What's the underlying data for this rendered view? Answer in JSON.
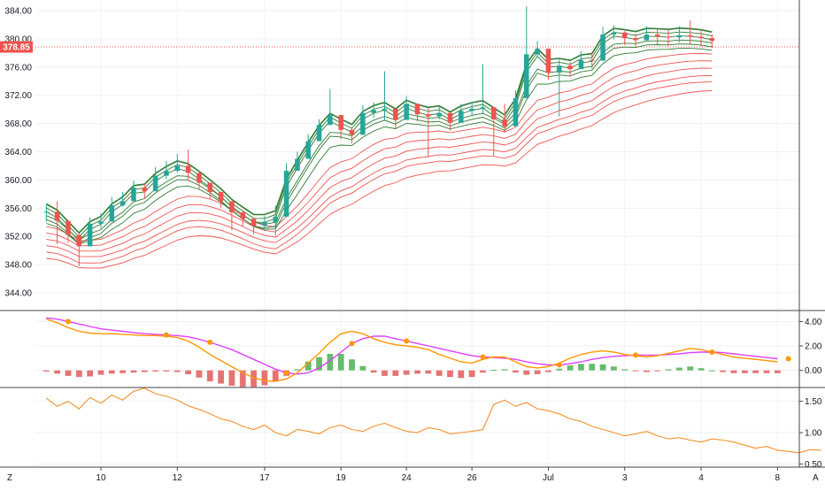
{
  "price_axis": {
    "ticks": [
      "384.00",
      "380.00",
      "376.00",
      "372.00",
      "368.00",
      "364.00",
      "360.00",
      "356.00",
      "352.00",
      "348.00",
      "344.00"
    ],
    "tick_values": [
      384,
      380,
      376,
      372,
      368,
      364,
      360,
      356,
      352,
      348,
      344
    ],
    "current_price_label": "378.85",
    "current_price": 378.85
  },
  "macd_axis": {
    "ticks": [
      "4.00",
      "2.00",
      "0.00"
    ],
    "tick_values": [
      4,
      2,
      0
    ]
  },
  "lower_axis": {
    "ticks": [
      "1.50",
      "1.00",
      "0.50"
    ],
    "tick_values": [
      1.5,
      1.0,
      0.5
    ]
  },
  "time_axis": {
    "ticks": [
      "10",
      "12",
      "17",
      "19",
      "24",
      "26",
      "Jul",
      "3",
      "4",
      "8"
    ],
    "tick_index": [
      6,
      13,
      21,
      28,
      34,
      40,
      47,
      54,
      61,
      68
    ]
  },
  "footer": {
    "left_button": "Z",
    "right_button": "A"
  },
  "colors": {
    "bull": "#26a69a",
    "bull_dark": "#089981",
    "bear": "#ef5350",
    "ribbon_fast": "#2e7d32",
    "ribbon_slow": "#ef5350",
    "macd_line": "#ff9800",
    "signal_line": "#e040fb",
    "lower_line": "#f5902a",
    "current_price_bg": "#ef5350"
  },
  "chart_data": [
    {
      "type": "candlestick",
      "panel": "price",
      "ylim": [
        341.5,
        385.5
      ],
      "x_range": [
        0,
        70
      ],
      "close_start": 355.5,
      "closes": [
        355.5,
        354.2,
        352.2,
        350.6,
        353.8,
        354.1,
        356.4,
        357.0,
        358.9,
        358.4,
        360.6,
        361.3,
        362.0,
        361.0,
        359.6,
        358.3,
        357.0,
        355.4,
        354.5,
        353.5,
        354.0,
        354.8,
        361.3,
        363.0,
        365.5,
        367.8,
        369.2,
        367.1,
        366.4,
        369.5,
        369.9,
        370.1,
        368.5,
        370.8,
        369.3,
        369.0,
        369.5,
        368.1,
        369.8,
        370.1,
        370.3,
        368.6,
        367.6,
        371.6,
        377.8,
        378.6,
        375.2,
        376.2,
        375.7,
        377.0,
        376.9,
        380.6,
        380.9,
        380.1,
        379.8,
        380.6,
        380.3,
        380.2,
        380.5,
        380.3,
        380.1,
        379.7
      ],
      "highs": [
        356.6,
        357.0,
        353.6,
        352.5,
        354.7,
        355.3,
        357.6,
        358.3,
        359.9,
        359.5,
        361.8,
        362.7,
        363.7,
        364.3,
        360.5,
        359.6,
        358.0,
        356.3,
        355.5,
        354.6,
        354.9,
        356.4,
        362.4,
        364.0,
        366.5,
        368.6,
        372.9,
        368.3,
        367.5,
        370.6,
        371.0,
        375.4,
        369.7,
        371.9,
        370.3,
        370.2,
        370.5,
        369.1,
        370.8,
        371.0,
        376.4,
        369.5,
        370.8,
        372.7,
        384.6,
        379.7,
        376.6,
        377.3,
        376.7,
        378.2,
        378.1,
        381.7,
        381.9,
        381.1,
        380.7,
        381.8,
        381.4,
        381.3,
        381.8,
        382.6,
        381.1,
        380.6
      ],
      "lows": [
        354.1,
        350.9,
        351.1,
        347.8,
        352.8,
        353.2,
        355.4,
        356.2,
        357.8,
        357.3,
        359.2,
        360.1,
        361.0,
        359.9,
        358.7,
        357.3,
        356.0,
        352.9,
        353.4,
        352.3,
        353.1,
        352.1,
        360.2,
        361.8,
        364.5,
        366.5,
        368.0,
        365.8,
        365.2,
        368.3,
        368.8,
        368.5,
        367.3,
        369.8,
        368.3,
        363.2,
        368.6,
        367.0,
        368.6,
        369.1,
        369.3,
        363.4,
        366.7,
        370.5,
        374.0,
        377.6,
        374.2,
        369.0,
        374.7,
        375.9,
        375.8,
        379.6,
        379.9,
        379.1,
        378.8,
        379.6,
        379.2,
        379.0,
        379.5,
        379.2,
        378.9,
        378.7
      ],
      "ribbon_fast": {
        "count": 6,
        "spread": 0.55,
        "lengths": [
          3,
          5,
          8,
          10,
          12,
          15
        ]
      },
      "ribbon_slow": {
        "count": 6,
        "spread": 0.9,
        "lengths": [
          30,
          35,
          40,
          45,
          50,
          60
        ]
      }
    },
    {
      "type": "line+histogram",
      "panel": "macd",
      "ylim": [
        -1.4,
        4.9
      ],
      "series": [
        {
          "role": "macd",
          "values": [
            4.2,
            3.9,
            3.5,
            3.2,
            3.05,
            3.0,
            3.0,
            2.95,
            2.9,
            2.85,
            2.85,
            2.8,
            2.7,
            2.4,
            1.9,
            1.3,
            0.8,
            0.3,
            -0.2,
            -0.6,
            -0.85,
            -0.9,
            -0.7,
            -0.2,
            0.6,
            1.4,
            2.3,
            3.0,
            3.2,
            3.0,
            2.6,
            2.3,
            2.1,
            2.0,
            1.9,
            1.7,
            1.3,
            1.0,
            0.7,
            0.6,
            0.9,
            1.1,
            1.1,
            0.7,
            0.3,
            0.2,
            0.3,
            0.6,
            1.0,
            1.3,
            1.5,
            1.6,
            1.5,
            1.3,
            1.2,
            1.1,
            1.2,
            1.4,
            1.6,
            1.8,
            1.7,
            1.5,
            1.3,
            1.1,
            1.0,
            0.9,
            0.8,
            0.7
          ]
        },
        {
          "role": "signal",
          "values": [
            4.3,
            4.2,
            4.0,
            3.8,
            3.6,
            3.4,
            3.3,
            3.2,
            3.1,
            3.0,
            2.95,
            2.9,
            2.85,
            2.75,
            2.55,
            2.3,
            2.0,
            1.7,
            1.3,
            0.9,
            0.5,
            0.1,
            -0.2,
            -0.3,
            -0.2,
            0.2,
            0.8,
            1.5,
            2.2,
            2.6,
            2.8,
            2.8,
            2.6,
            2.4,
            2.2,
            2.0,
            1.8,
            1.6,
            1.4,
            1.2,
            1.1,
            1.05,
            1.0,
            0.9,
            0.7,
            0.55,
            0.45,
            0.45,
            0.55,
            0.7,
            0.9,
            1.05,
            1.15,
            1.2,
            1.25,
            1.25,
            1.25,
            1.3,
            1.35,
            1.45,
            1.5,
            1.5,
            1.45,
            1.35,
            1.25,
            1.15,
            1.05,
            0.95
          ]
        }
      ],
      "markers": [
        2,
        11,
        15,
        22,
        28,
        33,
        40,
        47,
        54,
        61,
        68
      ]
    },
    {
      "type": "line",
      "panel": "lower",
      "ylim": [
        0.45,
        1.72
      ],
      "series": [
        {
          "role": "oscillator",
          "values": [
            1.55,
            1.42,
            1.5,
            1.38,
            1.56,
            1.47,
            1.6,
            1.52,
            1.66,
            1.71,
            1.62,
            1.58,
            1.52,
            1.43,
            1.37,
            1.3,
            1.22,
            1.18,
            1.1,
            1.05,
            1.12,
            1.0,
            0.95,
            1.05,
            1.02,
            0.98,
            1.08,
            1.12,
            1.05,
            1.02,
            1.1,
            1.15,
            1.08,
            1.02,
            1.0,
            1.08,
            1.05,
            0.98,
            1.0,
            1.02,
            1.05,
            1.45,
            1.52,
            1.42,
            1.48,
            1.38,
            1.35,
            1.3,
            1.22,
            1.18,
            1.1,
            1.05,
            1.0,
            0.95,
            0.98,
            1.02,
            0.95,
            0.9,
            0.92,
            0.88,
            0.85,
            0.9,
            0.88,
            0.85,
            0.8,
            0.75,
            0.78,
            0.72,
            0.7,
            0.68,
            0.73,
            0.72
          ]
        }
      ]
    }
  ]
}
